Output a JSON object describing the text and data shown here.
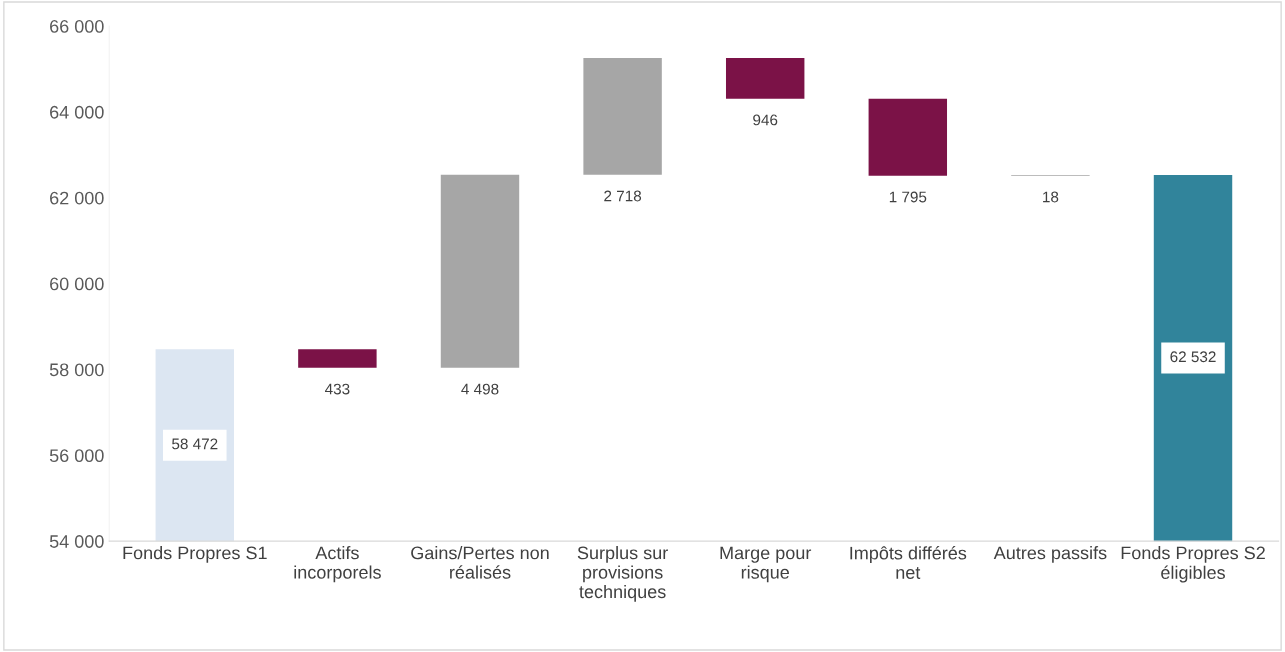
{
  "chart_data": {
    "type": "bar",
    "categories": [
      "Fonds Propres S1",
      "Actifs incorporels",
      "Gains/Pertes non réalisés",
      "Surplus sur provisions techniques",
      "Marge pour risque",
      "Impôts différés net",
      "Autres passifs",
      "Fonds Propres S2 éligibles"
    ],
    "values": [
      58472,
      -433,
      4498,
      2718,
      -946,
      -1795,
      18,
      62532
    ],
    "base": [
      null,
      58472,
      58039,
      62537,
      65255,
      64309,
      62514,
      null
    ],
    "colors": [
      "#dce6f2",
      "#7b1247",
      "#a6a6a6",
      "#a6a6a6",
      "#7b1247",
      "#7b1247",
      "#a6a6a6",
      "#31849b"
    ],
    "value_labels": [
      "58 472",
      "433",
      "4 498",
      "2 718",
      "946",
      "1 795",
      "18",
      "62 532"
    ],
    "ylim": [
      54000,
      66000
    ],
    "yticks": [
      {
        "value": 54000,
        "label": "54 000"
      },
      {
        "value": 56000,
        "label": "56 000"
      },
      {
        "value": 58000,
        "label": "58 000"
      },
      {
        "value": 60000,
        "label": "60 000"
      },
      {
        "value": 62000,
        "label": "62 000"
      },
      {
        "value": 64000,
        "label": "64 000"
      },
      {
        "value": 66000,
        "label": "66 000"
      }
    ],
    "grid": false
  }
}
